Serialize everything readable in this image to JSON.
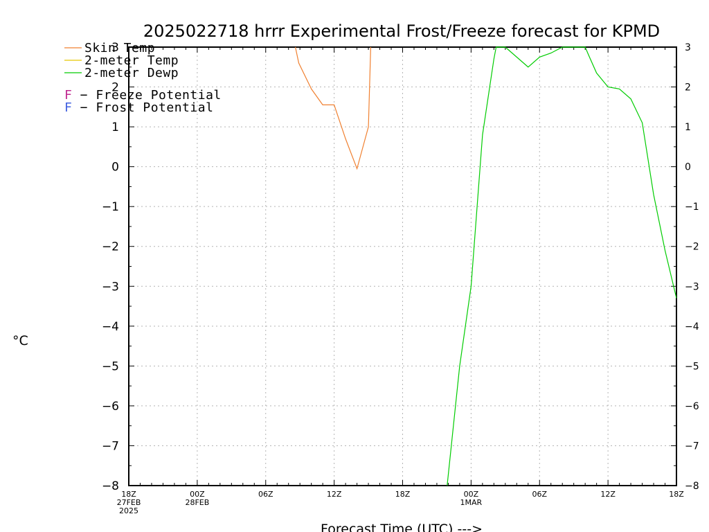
{
  "title": "2025022718 hrrr Experimental Frost/Freeze forecast for KPMD",
  "chart_data": {
    "type": "line",
    "title": "2025022718 hrrr Experimental Frost/Freeze forecast for KPMD",
    "xlabel": "Forecast Time (UTC) --->",
    "ylabel": "°C",
    "ylim": [
      -8,
      3
    ],
    "xlim": [
      0,
      48
    ],
    "x_unit": "forecast hours from 2025-02-27 18Z",
    "grid": true,
    "legend_placement": "top-left",
    "y_ticks": [
      "3",
      "2",
      "1",
      "0",
      "−1",
      "−2",
      "−3",
      "−4",
      "−5",
      "−6",
      "−7",
      "−8"
    ],
    "x_ticks": [
      {
        "x": 0,
        "lines": [
          "18Z",
          "27FEB",
          "2025"
        ]
      },
      {
        "x": 6,
        "lines": [
          "00Z",
          "28FEB"
        ]
      },
      {
        "x": 12,
        "lines": [
          "06Z"
        ]
      },
      {
        "x": 18,
        "lines": [
          "12Z"
        ]
      },
      {
        "x": 24,
        "lines": [
          "18Z"
        ]
      },
      {
        "x": 30,
        "lines": [
          "00Z",
          "1MAR"
        ]
      },
      {
        "x": 36,
        "lines": [
          "06Z"
        ]
      },
      {
        "x": 42,
        "lines": [
          "12Z"
        ]
      },
      {
        "x": 48,
        "lines": [
          "18Z"
        ]
      }
    ],
    "series": [
      {
        "name": "Skin Temp",
        "color": "#f08030",
        "points": [
          [
            14.6,
            3.0
          ],
          [
            14.9,
            2.6
          ],
          [
            16.0,
            1.95
          ],
          [
            17.0,
            1.55
          ],
          [
            18.0,
            1.55
          ],
          [
            19.0,
            0.7
          ],
          [
            20.0,
            -0.05
          ],
          [
            21.0,
            1.0
          ],
          [
            21.2,
            3.0
          ]
        ]
      },
      {
        "name": "2-meter Temp",
        "color": "#e8c800",
        "points": []
      },
      {
        "name": "2-meter Dewp",
        "color": "#00cc00",
        "points": [
          [
            27.9,
            -8.0
          ],
          [
            29.0,
            -5.0
          ],
          [
            30.0,
            -3.0
          ],
          [
            31.0,
            0.8
          ],
          [
            32.0,
            2.7
          ],
          [
            32.2,
            3.0
          ],
          [
            33.0,
            3.0
          ],
          [
            35.0,
            2.5
          ],
          [
            36.0,
            2.75
          ],
          [
            37.0,
            2.85
          ],
          [
            38.0,
            3.0
          ],
          [
            40.0,
            3.0
          ],
          [
            40.3,
            2.8
          ],
          [
            41.0,
            2.35
          ],
          [
            42.0,
            2.0
          ],
          [
            43.0,
            1.95
          ],
          [
            44.0,
            1.7
          ],
          [
            45.0,
            1.1
          ],
          [
            46.0,
            -0.7
          ],
          [
            47.0,
            -2.1
          ],
          [
            48.0,
            -3.3
          ]
        ]
      }
    ],
    "potential_legend": [
      {
        "glyph": "F",
        "text": " − Freeze Potential",
        "color": "#c02890"
      },
      {
        "glyph": "F",
        "text": " − Frost Potential",
        "color": "#4060e0"
      }
    ]
  }
}
